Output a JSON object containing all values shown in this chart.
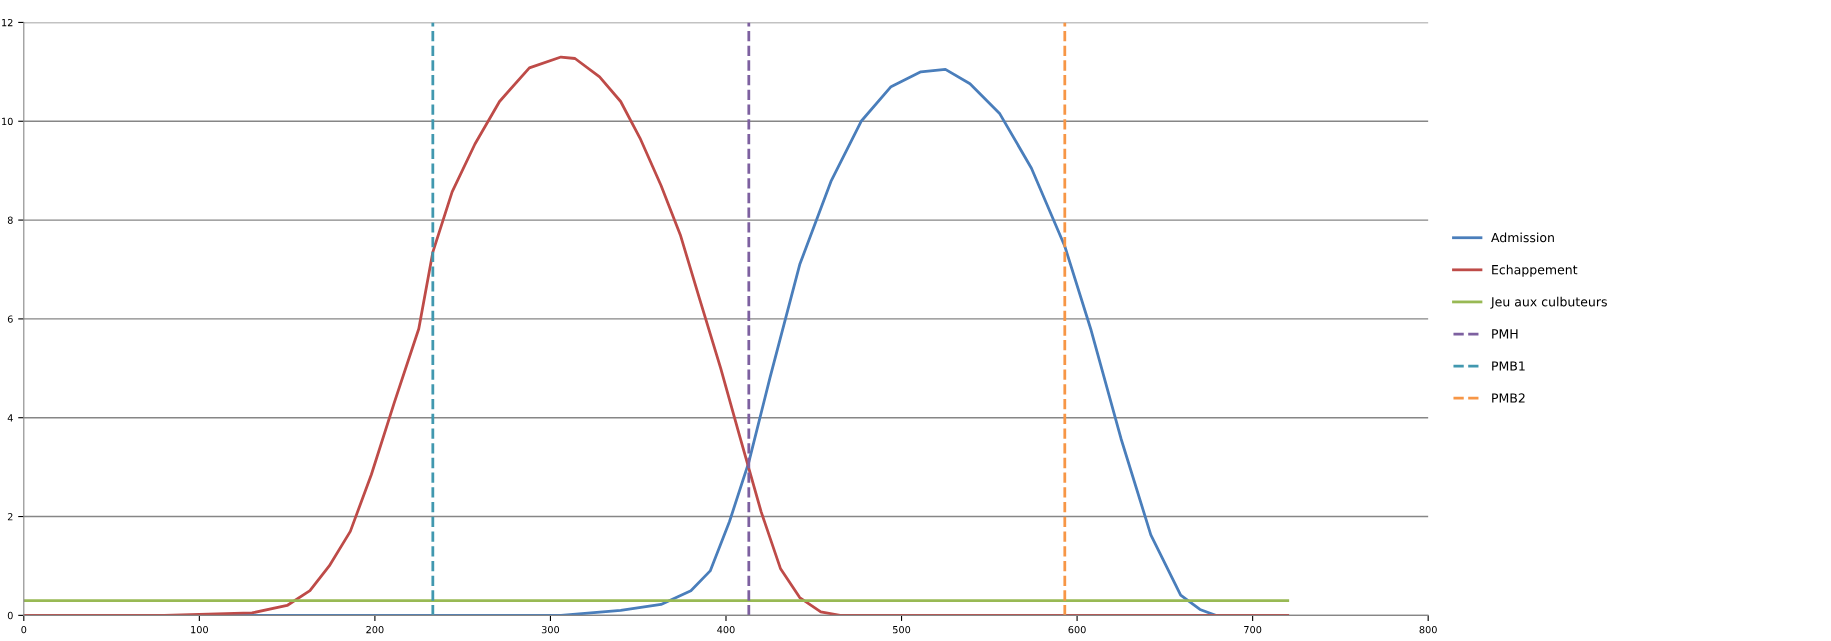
{
  "chart_data": {
    "type": "line",
    "xlim": [
      0,
      800
    ],
    "xticks": [
      0,
      100,
      200,
      300,
      400,
      500,
      600,
      700,
      800
    ],
    "ylim": [
      0,
      12
    ],
    "yticks": [
      0,
      2,
      4,
      6,
      8,
      10,
      12
    ],
    "grid": "y",
    "legend": "right",
    "marker": "none",
    "series": [
      {
        "name": "Admission",
        "color": "#4a7ebb",
        "line_style": "solid",
        "x": [
          0,
          306,
          340,
          363,
          380,
          391,
          402,
          413,
          425,
          442,
          460,
          477,
          494,
          511,
          525,
          539,
          556,
          574,
          593,
          608,
          625,
          642,
          659,
          670,
          679
        ],
        "values": [
          0,
          0,
          0.1,
          0.22,
          0.5,
          0.9,
          1.9,
          3.1,
          4.8,
          7.1,
          8.8,
          10.0,
          10.7,
          11.0,
          11.05,
          10.76,
          10.15,
          9.05,
          7.47,
          5.77,
          3.58,
          1.63,
          0.41,
          0.12,
          0
        ]
      },
      {
        "name": "Echappement",
        "color": "#be4b48",
        "line_style": "solid",
        "x": [
          0,
          80,
          100,
          130,
          150,
          163,
          174,
          186,
          198,
          211,
          225,
          233,
          244,
          257,
          271,
          288,
          306,
          314,
          328,
          340,
          351,
          363,
          374,
          385,
          397,
          408,
          420,
          431,
          442,
          454,
          465,
          720
        ],
        "values": [
          0,
          0,
          0.02,
          0.05,
          0.2,
          0.5,
          1.0,
          1.7,
          2.85,
          4.3,
          5.8,
          7.35,
          8.57,
          9.54,
          10.4,
          11.08,
          11.3,
          11.27,
          10.9,
          10.4,
          9.66,
          8.7,
          7.7,
          6.4,
          5.0,
          3.6,
          2.1,
          0.95,
          0.36,
          0.07,
          0,
          0
        ]
      },
      {
        "name": "Jeu aux culbuteurs",
        "color": "#98b954",
        "line_style": "solid",
        "x": [
          0,
          720
        ],
        "values": [
          0.3,
          0.3
        ]
      },
      {
        "name": "PMH",
        "color": "#7d60a0",
        "line_style": "dashed",
        "x": [
          413,
          413
        ],
        "values": [
          0,
          12
        ]
      },
      {
        "name": "PMB1",
        "color": "#4198af",
        "line_style": "dashed",
        "x": [
          233,
          233
        ],
        "values": [
          0,
          12
        ]
      },
      {
        "name": "PMB2",
        "color": "#f79646",
        "line_style": "dashed",
        "x": [
          593,
          593
        ],
        "values": [
          0,
          12
        ]
      }
    ]
  }
}
